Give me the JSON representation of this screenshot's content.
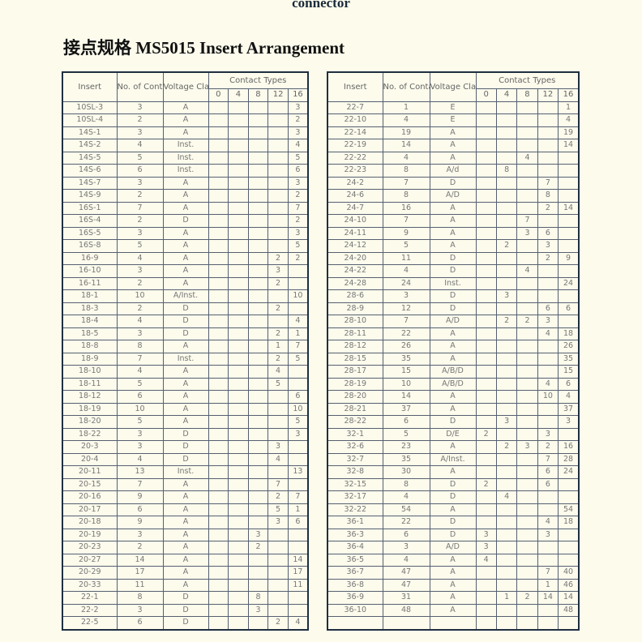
{
  "top_title": "connector",
  "heading": "接点规格 MS5015 Insert Arrangement",
  "headers": {
    "insert": "Insert",
    "contacts": "No. of Contacts",
    "voltage": "Voltage Class",
    "contact_types": "Contact Types",
    "types": [
      "0",
      "4",
      "8",
      "12",
      "16"
    ]
  },
  "left_table": [
    [
      "10SL-3",
      "3",
      "A",
      "",
      "",
      "",
      "",
      "3"
    ],
    [
      "10SL-4",
      "2",
      "A",
      "",
      "",
      "",
      "",
      "2"
    ],
    [
      "14S-1",
      "3",
      "A",
      "",
      "",
      "",
      "",
      "3"
    ],
    [
      "14S-2",
      "4",
      "Inst.",
      "",
      "",
      "",
      "",
      "4"
    ],
    [
      "14S-5",
      "5",
      "Inst.",
      "",
      "",
      "",
      "",
      "5"
    ],
    [
      "14S-6",
      "6",
      "Inst.",
      "",
      "",
      "",
      "",
      "6"
    ],
    [
      "14S-7",
      "3",
      "A",
      "",
      "",
      "",
      "",
      "3"
    ],
    [
      "14S-9",
      "2",
      "A",
      "",
      "",
      "",
      "",
      "2"
    ],
    [
      "16S-1",
      "7",
      "A",
      "",
      "",
      "",
      "",
      "7"
    ],
    [
      "16S-4",
      "2",
      "D",
      "",
      "",
      "",
      "",
      "2"
    ],
    [
      "16S-5",
      "3",
      "A",
      "",
      "",
      "",
      "",
      "3"
    ],
    [
      "16S-8",
      "5",
      "A",
      "",
      "",
      "",
      "",
      "5"
    ],
    [
      "16-9",
      "4",
      "A",
      "",
      "",
      "",
      "2",
      "2"
    ],
    [
      "16-10",
      "3",
      "A",
      "",
      "",
      "",
      "3",
      ""
    ],
    [
      "16-11",
      "2",
      "A",
      "",
      "",
      "",
      "2",
      ""
    ],
    [
      "18-1",
      "10",
      "A/Inst.",
      "",
      "",
      "",
      "",
      "10"
    ],
    [
      "18-3",
      "2",
      "D",
      "",
      "",
      "",
      "2",
      ""
    ],
    [
      "18-4",
      "4",
      "D",
      "",
      "",
      "",
      "",
      "4"
    ],
    [
      "18-5",
      "3",
      "D",
      "",
      "",
      "",
      "2",
      "1"
    ],
    [
      "18-8",
      "8",
      "A",
      "",
      "",
      "",
      "1",
      "7"
    ],
    [
      "18-9",
      "7",
      "Inst.",
      "",
      "",
      "",
      "2",
      "5"
    ],
    [
      "18-10",
      "4",
      "A",
      "",
      "",
      "",
      "4",
      ""
    ],
    [
      "18-11",
      "5",
      "A",
      "",
      "",
      "",
      "5",
      ""
    ],
    [
      "18-12",
      "6",
      "A",
      "",
      "",
      "",
      "",
      "6"
    ],
    [
      "18-19",
      "10",
      "A",
      "",
      "",
      "",
      "",
      "10"
    ],
    [
      "18-20",
      "5",
      "A",
      "",
      "",
      "",
      "",
      "5"
    ],
    [
      "18-22",
      "3",
      "D",
      "",
      "",
      "",
      "",
      "3"
    ],
    [
      "20-3",
      "3",
      "D",
      "",
      "",
      "",
      "3",
      ""
    ],
    [
      "20-4",
      "4",
      "D",
      "",
      "",
      "",
      "4",
      ""
    ],
    [
      "20-11",
      "13",
      "Inst.",
      "",
      "",
      "",
      "",
      "13"
    ],
    [
      "20-15",
      "7",
      "A",
      "",
      "",
      "",
      "7",
      ""
    ],
    [
      "20-16",
      "9",
      "A",
      "",
      "",
      "",
      "2",
      "7"
    ],
    [
      "20-17",
      "6",
      "A",
      "",
      "",
      "",
      "5",
      "1"
    ],
    [
      "20-18",
      "9",
      "A",
      "",
      "",
      "",
      "3",
      "6"
    ],
    [
      "20-19",
      "3",
      "A",
      "",
      "",
      "3",
      "",
      ""
    ],
    [
      "20-23",
      "2",
      "A",
      "",
      "",
      "2",
      "",
      ""
    ],
    [
      "20-27",
      "14",
      "A",
      "",
      "",
      "",
      "",
      "14"
    ],
    [
      "20-29",
      "17",
      "A",
      "",
      "",
      "",
      "",
      "17"
    ],
    [
      "20-33",
      "11",
      "A",
      "",
      "",
      "",
      "",
      "11"
    ],
    [
      "22-1",
      "8",
      "D",
      "",
      "",
      "8",
      "",
      ""
    ],
    [
      "22-2",
      "3",
      "D",
      "",
      "",
      "3",
      "",
      ""
    ],
    [
      "22-5",
      "6",
      "D",
      "",
      "",
      "",
      "2",
      "4"
    ]
  ],
  "right_table": [
    [
      "22-7",
      "1",
      "E",
      "",
      "",
      "",
      "",
      "1"
    ],
    [
      "22-10",
      "4",
      "E",
      "",
      "",
      "",
      "",
      "4"
    ],
    [
      "22-14",
      "19",
      "A",
      "",
      "",
      "",
      "",
      "19"
    ],
    [
      "22-19",
      "14",
      "A",
      "",
      "",
      "",
      "",
      "14"
    ],
    [
      "22-22",
      "4",
      "A",
      "",
      "",
      "4",
      "",
      ""
    ],
    [
      "22-23",
      "8",
      "A/d",
      "",
      "8",
      "",
      "",
      ""
    ],
    [
      "24-2",
      "7",
      "D",
      "",
      "",
      "",
      "7",
      ""
    ],
    [
      "24-6",
      "8",
      "A/D",
      "",
      "",
      "",
      "8",
      ""
    ],
    [
      "24-7",
      "16",
      "A",
      "",
      "",
      "",
      "2",
      "14"
    ],
    [
      "24-10",
      "7",
      "A",
      "",
      "",
      "7",
      "",
      ""
    ],
    [
      "24-11",
      "9",
      "A",
      "",
      "",
      "3",
      "6",
      ""
    ],
    [
      "24-12",
      "5",
      "A",
      "",
      "2",
      "",
      "3",
      ""
    ],
    [
      "24-20",
      "11",
      "D",
      "",
      "",
      "",
      "2",
      "9"
    ],
    [
      "24-22",
      "4",
      "D",
      "",
      "",
      "4",
      "",
      ""
    ],
    [
      "24-28",
      "24",
      "Inst.",
      "",
      "",
      "",
      "",
      "24"
    ],
    [
      "28-6",
      "3",
      "D",
      "",
      "3",
      "",
      "",
      ""
    ],
    [
      "28-9",
      "12",
      "D",
      "",
      "",
      "",
      "6",
      "6"
    ],
    [
      "28-10",
      "7",
      "A/D",
      "",
      "2",
      "2",
      "3",
      ""
    ],
    [
      "28-11",
      "22",
      "A",
      "",
      "",
      "",
      "4",
      "18"
    ],
    [
      "28-12",
      "26",
      "A",
      "",
      "",
      "",
      "",
      "26"
    ],
    [
      "28-15",
      "35",
      "A",
      "",
      "",
      "",
      "",
      "35"
    ],
    [
      "28-17",
      "15",
      "A/B/D",
      "",
      "",
      "",
      "",
      "15"
    ],
    [
      "28-19",
      "10",
      "A/B/D",
      "",
      "",
      "",
      "4",
      "6"
    ],
    [
      "28-20",
      "14",
      "A",
      "",
      "",
      "",
      "10",
      "4"
    ],
    [
      "28-21",
      "37",
      "A",
      "",
      "",
      "",
      "",
      "37"
    ],
    [
      "28-22",
      "6",
      "D",
      "",
      "3",
      "",
      "",
      "3"
    ],
    [
      "32-1",
      "5",
      "D/E",
      "2",
      "",
      "",
      "3",
      ""
    ],
    [
      "32-6",
      "23",
      "A",
      "",
      "2",
      "3",
      "2",
      "16"
    ],
    [
      "32-7",
      "35",
      "A/Inst.",
      "",
      "",
      "",
      "7",
      "28"
    ],
    [
      "32-8",
      "30",
      "A",
      "",
      "",
      "",
      "6",
      "24"
    ],
    [
      "32-15",
      "8",
      "D",
      "2",
      "",
      "",
      "6",
      ""
    ],
    [
      "32-17",
      "4",
      "D",
      "",
      "4",
      "",
      "",
      ""
    ],
    [
      "32-22",
      "54",
      "A",
      "",
      "",
      "",
      "",
      "54"
    ],
    [
      "36-1",
      "22",
      "D",
      "",
      "",
      "",
      "4",
      "18"
    ],
    [
      "36-3",
      "6",
      "D",
      "3",
      "",
      "",
      "3",
      ""
    ],
    [
      "36-4",
      "3",
      "A/D",
      "3",
      "",
      "",
      "",
      ""
    ],
    [
      "36-5",
      "4",
      "A",
      "4",
      "",
      "",
      "",
      ""
    ],
    [
      "36-7",
      "47",
      "A",
      "",
      "",
      "",
      "7",
      "40"
    ],
    [
      "36-8",
      "47",
      "A",
      "",
      "",
      "",
      "1",
      "46"
    ],
    [
      "36-9",
      "31",
      "A",
      "",
      "1",
      "2",
      "14",
      "14"
    ],
    [
      "36-10",
      "48",
      "A",
      "",
      "",
      "",
      "",
      "48"
    ],
    [
      "",
      "",
      "",
      "",
      "",
      "",
      "",
      ""
    ]
  ]
}
